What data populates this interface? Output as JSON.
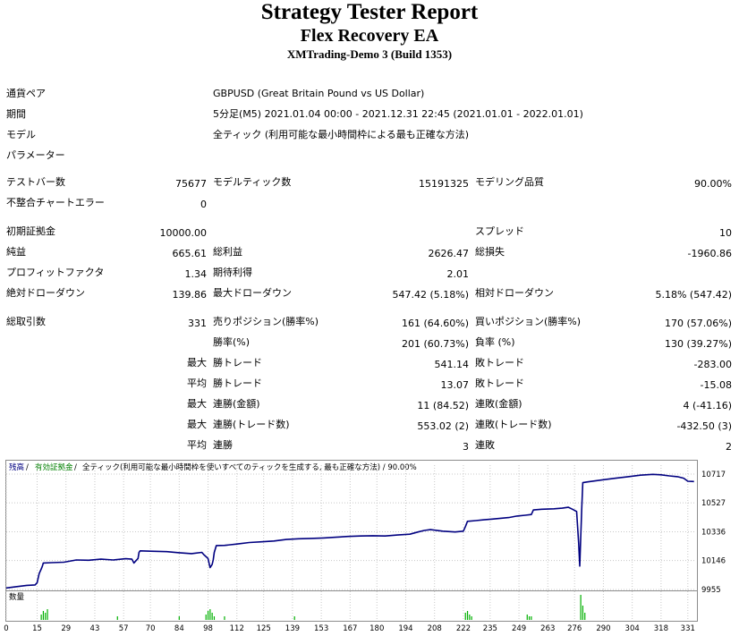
{
  "header": {
    "title": "Strategy Tester Report",
    "subtitle": "Flex Recovery EA",
    "build": "XMTrading-Demo 3 (Build 1353)"
  },
  "info": {
    "pair_label": "通貨ペア",
    "pair_value": "GBPUSD (Great Britain Pound vs US Dollar)",
    "period_label": "期間",
    "period_value": "5分足(M5) 2021.01.04 00:00 - 2021.12.31 22:45 (2021.01.01 - 2022.01.01)",
    "model_label": "モデル",
    "model_value": "全ティック (利用可能な最小時間枠による最も正確な方法)",
    "params_label": "パラメーター"
  },
  "stats": {
    "bars_label": "テストバー数",
    "bars_value": "75677",
    "ticks_label": "モデルティック数",
    "ticks_value": "15191325",
    "quality_label": "モデリング品質",
    "quality_value": "90.00%",
    "mismatch_label": "不整合チャートエラー",
    "mismatch_value": "0",
    "deposit_label": "初期証拠金",
    "deposit_value": "10000.00",
    "spread_label": "スプレッド",
    "spread_value": "10",
    "net_label": "純益",
    "net_value": "665.61",
    "gross_profit_label": "総利益",
    "gross_profit_value": "2626.47",
    "gross_loss_label": "総損失",
    "gross_loss_value": "-1960.86",
    "pf_label": "プロフィットファクタ",
    "pf_value": "1.34",
    "expected_label": "期待利得",
    "expected_value": "2.01",
    "abs_dd_label": "絶対ドローダウン",
    "abs_dd_value": "139.86",
    "max_dd_label": "最大ドローダウン",
    "max_dd_value": "547.42 (5.18%)",
    "rel_dd_label": "相対ドローダウン",
    "rel_dd_value": "5.18% (547.42)",
    "trades_label": "総取引数",
    "trades_value": "331",
    "short_label": "売りポジション(勝率%)",
    "short_value": "161 (64.60%)",
    "long_label": "買いポジション(勝率%)",
    "long_value": "170 (57.06%)",
    "winrate_label": "勝率(%)",
    "winrate_value": "201 (60.73%)",
    "lossrate_label": "負率 (%)",
    "lossrate_value": "130 (39.27%)",
    "max1_label": "最大",
    "largest_win_label": "勝トレード",
    "largest_win_value": "541.14",
    "largest_loss_label": "敗トレード",
    "largest_loss_value": "-283.00",
    "avg1_label": "平均",
    "avg_win_label": "勝トレード",
    "avg_win_value": "13.07",
    "avg_loss_label": "敗トレード",
    "avg_loss_value": "-15.08",
    "max2_label": "最大",
    "max_consec_wins_label": "連勝(金額)",
    "max_consec_wins_value": "11 (84.52)",
    "max_consec_losses_label": "連敗(金額)",
    "max_consec_losses_value": "4 (-41.16)",
    "max3_label": "最大",
    "max_consec_profit_label": "連勝(トレード数)",
    "max_consec_profit_value": "553.02 (2)",
    "max_consec_loss_label": "連敗(トレード数)",
    "max_consec_loss_value": "-432.50 (3)",
    "avg2_label": "平均",
    "avg_consec_wins_label": "連勝",
    "avg_consec_wins_value": "3",
    "avg_consec_losses_label": "連敗",
    "avg_consec_losses_value": "2"
  },
  "chart_legend": {
    "balance": "残高",
    "sep1": " / ",
    "equity": "有効証拠金",
    "sep2": " / ",
    "rest": "全ティック(利用可能な最小時間枠を使いすべてのティックを生成する, 最も正確な方法) / 90.00%",
    "volume_label": "数量",
    "balance_color": "#000080",
    "equity_color": "#008000"
  },
  "chart_data": {
    "type": "line",
    "title": "",
    "xlabel": "",
    "ylabel": "",
    "ylim": [
      9955,
      10717
    ],
    "y_ticks": [
      10717,
      10527,
      10336,
      10146,
      9955
    ],
    "x_ticks": [
      0,
      15,
      29,
      43,
      57,
      70,
      84,
      98,
      112,
      125,
      139,
      153,
      167,
      180,
      194,
      208,
      222,
      235,
      249,
      263,
      276,
      290,
      304,
      318,
      331
    ],
    "xlim": [
      0,
      335
    ],
    "series": [
      {
        "name": "残高",
        "color": "#000080",
        "x": [
          0,
          6,
          10,
          14,
          15,
          16,
          17,
          17.5,
          18,
          22,
          28,
          34,
          40,
          46,
          52,
          58,
          61,
          62,
          63,
          64,
          64.5,
          65,
          70,
          78,
          84,
          90,
          95,
          96,
          98,
          99,
          100,
          100.5,
          101,
          102,
          106,
          112,
          118,
          124,
          130,
          136,
          142,
          148,
          154,
          160,
          166,
          172,
          178,
          184,
          190,
          196,
          200,
          203,
          206,
          212,
          218,
          222,
          223,
          224,
          228,
          232,
          236,
          240,
          244,
          248,
          252,
          255,
          256,
          260,
          266,
          270,
          273,
          275,
          277,
          278,
          278.5,
          279,
          279.5,
          280,
          282,
          286,
          290,
          296,
          302,
          308,
          314,
          318,
          322,
          326,
          329,
          331,
          334
        ],
        "y": [
          9965,
          9975,
          9982,
          9985,
          10000,
          10060,
          10090,
          10108,
          10130,
          10132,
          10135,
          10150,
          10148,
          10155,
          10150,
          10158,
          10155,
          10130,
          10145,
          10160,
          10200,
          10210,
          10208,
          10205,
          10198,
          10192,
          10200,
          10185,
          10160,
          10100,
          10120,
          10150,
          10200,
          10245,
          10246,
          10255,
          10265,
          10270,
          10275,
          10285,
          10290,
          10292,
          10295,
          10300,
          10305,
          10308,
          10310,
          10308,
          10315,
          10320,
          10335,
          10345,
          10350,
          10340,
          10335,
          10340,
          10370,
          10405,
          10410,
          10415,
          10420,
          10425,
          10430,
          10440,
          10445,
          10450,
          10480,
          10485,
          10488,
          10492,
          10498,
          10485,
          10470,
          10260,
          10110,
          10300,
          10500,
          10660,
          10665,
          10672,
          10680,
          10690,
          10700,
          10710,
          10715,
          10712,
          10705,
          10700,
          10690,
          10670,
          10668
        ]
      }
    ],
    "volume": {
      "x": [
        17,
        18,
        19,
        20,
        54,
        84,
        97,
        98,
        99,
        100,
        101,
        106,
        140,
        223,
        224,
        225,
        226,
        253,
        254,
        255,
        279,
        280,
        281
      ],
      "y": [
        3,
        5,
        4,
        6,
        2,
        2,
        3,
        5,
        6,
        4,
        2,
        2,
        2,
        4,
        5,
        3,
        2,
        3,
        2,
        2,
        14,
        8,
        4
      ]
    }
  }
}
